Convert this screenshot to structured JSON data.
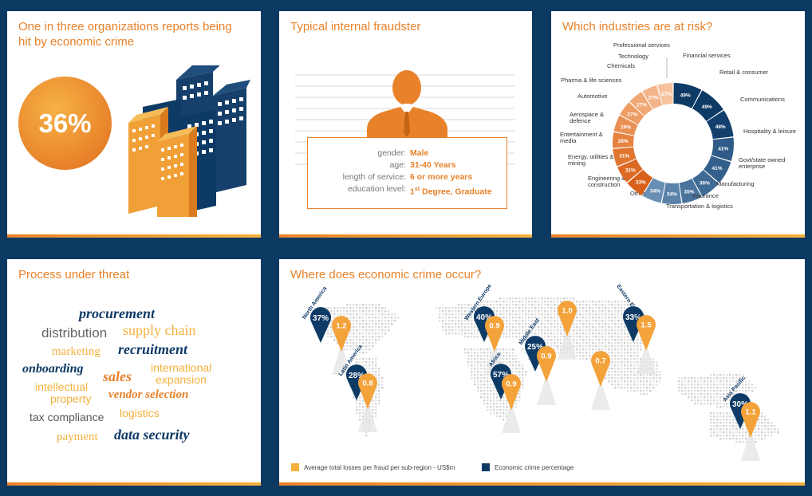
{
  "card1": {
    "title_line1": "One in three organizations reports being",
    "title_line2": "hit by economic crime",
    "percent": "36%"
  },
  "card2": {
    "title": "Typical internal fraudster",
    "rows": [
      {
        "label": "gender:",
        "value": "Male"
      },
      {
        "label": "age:",
        "value": "31-40 Years"
      },
      {
        "label": "length of service:",
        "value": "6 or more years"
      },
      {
        "label": "education level:",
        "value_main": "1",
        "value_sup": "st",
        "value_rest": " Degree, Graduate"
      }
    ]
  },
  "card3": {
    "title": "Which industries are at risk?",
    "chart_data": {
      "type": "pie",
      "categories": [
        "Financial services",
        "Retail & consumer",
        "Communications",
        "Hospitality & leisure",
        "Govt/state owned enterprise",
        "Manufacturing",
        "Insurance",
        "Transportation & logistics",
        "Other",
        "Engineering & construction",
        "Energy, utilities & mining",
        "Entertainment & media",
        "Aerospace & defence",
        "Automotive",
        "Pharma & life sciences",
        "Chemicals",
        "Technology",
        "Professional services"
      ],
      "values": [
        49,
        49,
        48,
        41,
        41,
        36,
        35,
        34,
        34,
        33,
        31,
        31,
        28,
        29,
        27,
        27,
        27,
        27
      ],
      "value_labels": [
        "49%",
        "49%",
        "48%",
        "41%",
        "41%",
        "36%",
        "35%",
        "34%",
        "34%",
        "33%",
        "31%",
        "31%",
        "28%",
        "29%",
        "27%",
        "27%",
        "27%",
        "27%"
      ],
      "colors": [
        "#0e3a66",
        "#0e3a66",
        "#143f6c",
        "#2f5b88",
        "#345f8b",
        "#3f6a94",
        "#4a739c",
        "#5b82a9",
        "#6a8fb4",
        "#d9601a",
        "#dc6a24",
        "#e07530",
        "#e58240",
        "#e98f52",
        "#ed9c64",
        "#f0a877",
        "#f3b48a",
        "#f6c29e"
      ]
    }
  },
  "card4": {
    "title": "Process under threat",
    "words": [
      "procurement",
      "distribution",
      "supply chain",
      "marketing",
      "recruitment",
      "onboarding",
      "sales",
      "international",
      "expansion",
      "intellectual",
      "property",
      "vendor selection",
      "logistics",
      "tax compliance",
      "payment",
      "data security"
    ]
  },
  "card5": {
    "title": "Where does economic crime occur?",
    "regions": [
      {
        "name": "North America",
        "pct": "37%",
        "loss": "1.2"
      },
      {
        "name": "Latin America",
        "pct": "28%",
        "loss": "0.8"
      },
      {
        "name": "Western Europe",
        "pct": "40%",
        "loss": "0.9"
      },
      {
        "name": "Middle East",
        "pct": "25%",
        "loss": "0.9"
      },
      {
        "name": "Africa",
        "pct": "57%",
        "loss": "0.9"
      },
      {
        "name": "",
        "pct": "",
        "loss": "1.0"
      },
      {
        "name": "",
        "pct": "",
        "loss": "0.7"
      },
      {
        "name": "Eastern Europe",
        "pct": "33%",
        "loss": "1.5"
      },
      {
        "name": "Asia Pacific",
        "pct": "30%",
        "loss": "1.1"
      }
    ],
    "legend": {
      "orange": "Average total losses per fraud per sub-region - US$m",
      "navy": "Economic crime percentage"
    }
  },
  "colors": {
    "orange": "#e8822a",
    "light_orange": "#f4b13c",
    "navy": "#0e3a66",
    "background": "#0d3a63"
  }
}
